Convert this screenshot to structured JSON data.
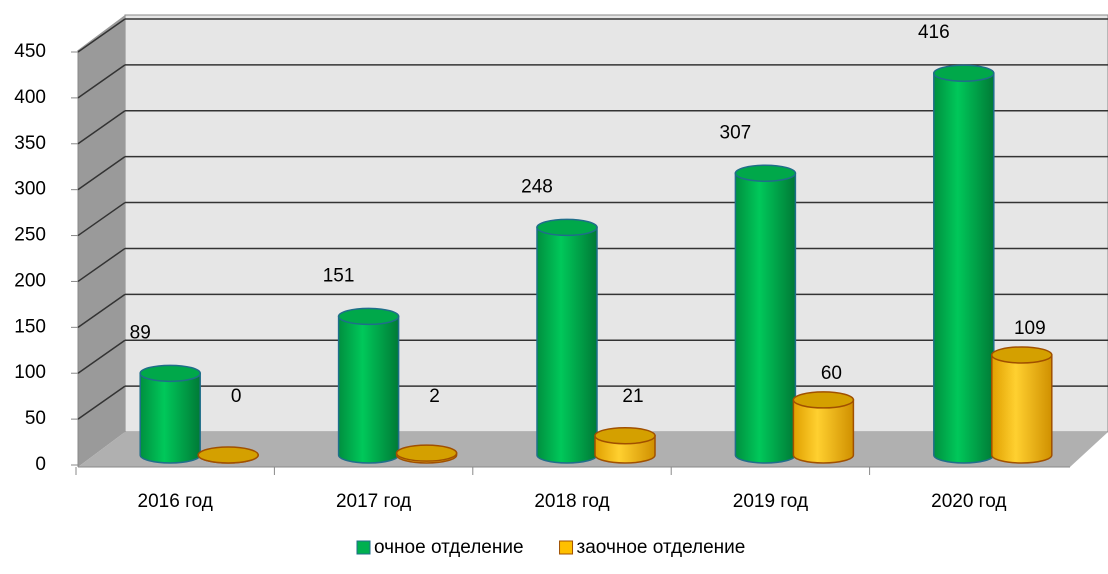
{
  "chart_data": {
    "type": "bar3d",
    "categories": [
      "2016 год",
      "2017 год",
      "2018 год",
      "2019 год",
      "2020 год"
    ],
    "series": [
      {
        "name": "очное отделение",
        "color": "#00b050",
        "values": [
          89,
          151,
          248,
          307,
          416
        ]
      },
      {
        "name": "заочное отделение",
        "color": "#ffc000",
        "values": [
          0,
          2,
          21,
          60,
          109
        ]
      }
    ],
    "ylim": [
      0,
      450
    ],
    "yticks": [
      0,
      50,
      100,
      150,
      200,
      250,
      300,
      350,
      400,
      450
    ],
    "grid": true,
    "legend": "bottom"
  }
}
